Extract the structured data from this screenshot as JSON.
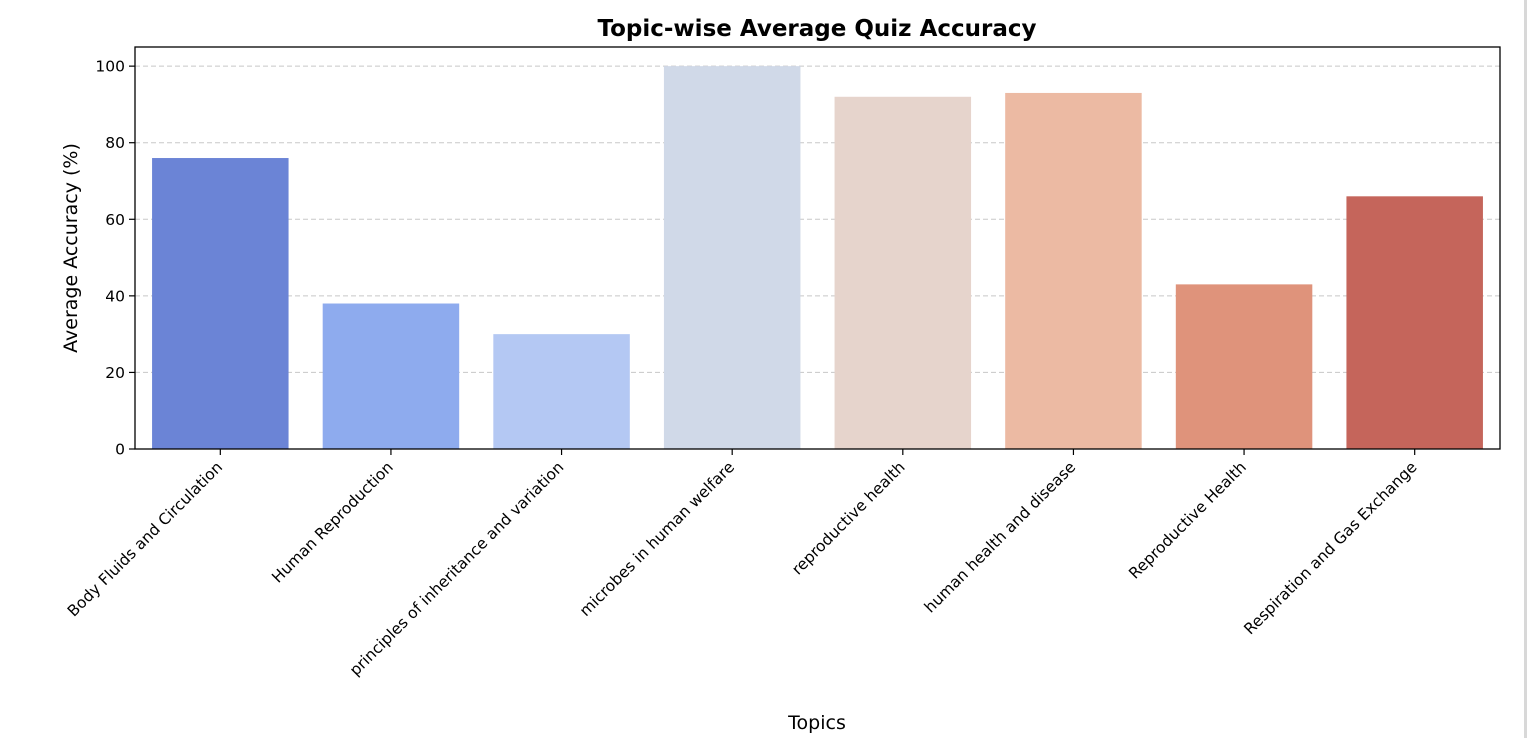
{
  "chart_data": {
    "type": "bar",
    "title": "Topic-wise Average Quiz Accuracy",
    "xlabel": "Topics",
    "ylabel": "Average Accuracy (%)",
    "categories": [
      "Body Fluids and Circulation",
      "Human Reproduction",
      "principles of inheritance and variation",
      "microbes in human welfare",
      "reproductive health",
      "human health and disease",
      "Reproductive Health",
      "Respiration and Gas Exchange"
    ],
    "values": [
      76,
      38,
      30,
      100,
      92,
      93,
      43,
      66
    ],
    "colors": [
      "#6b84d6",
      "#8eabee",
      "#b4c8f3",
      "#d0d9e8",
      "#e6d4cc",
      "#ecbaa3",
      "#df937b",
      "#c5655b"
    ],
    "ylim": [
      0,
      105
    ],
    "yticks": [
      0,
      20,
      40,
      60,
      80,
      100
    ],
    "grid": "y-dashed",
    "legend": "none"
  }
}
